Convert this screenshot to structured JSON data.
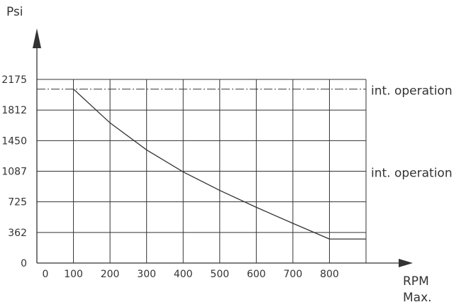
{
  "chart_data": {
    "type": "line",
    "ylabel": "Psi",
    "xlabel": [
      "RPM",
      "Max."
    ],
    "x_ticks": [
      0,
      100,
      200,
      300,
      400,
      500,
      600,
      700,
      800
    ],
    "y_ticks": [
      0,
      362,
      725,
      1087,
      1450,
      1812,
      2175
    ],
    "xlim": [
      0,
      900
    ],
    "ylim": [
      0,
      2175
    ],
    "grid": true,
    "series": [
      {
        "type": "curve",
        "points": [
          [
            100,
            2060
          ],
          [
            200,
            1660
          ],
          [
            300,
            1340
          ],
          [
            400,
            1080
          ],
          [
            500,
            860
          ],
          [
            600,
            660
          ],
          [
            700,
            470
          ],
          [
            800,
            285
          ]
        ]
      },
      {
        "type": "line",
        "points": [
          [
            800,
            285
          ],
          [
            900,
            285
          ]
        ]
      }
    ],
    "reference_lines": [
      {
        "y": 2060,
        "style": "dash-dot",
        "label": "int. operation"
      },
      {
        "y": 1087,
        "style": "dash-dot",
        "label": "int. operation"
      }
    ],
    "colors": {
      "line": "#333333",
      "grid": "#333333",
      "text": "#333333"
    }
  }
}
